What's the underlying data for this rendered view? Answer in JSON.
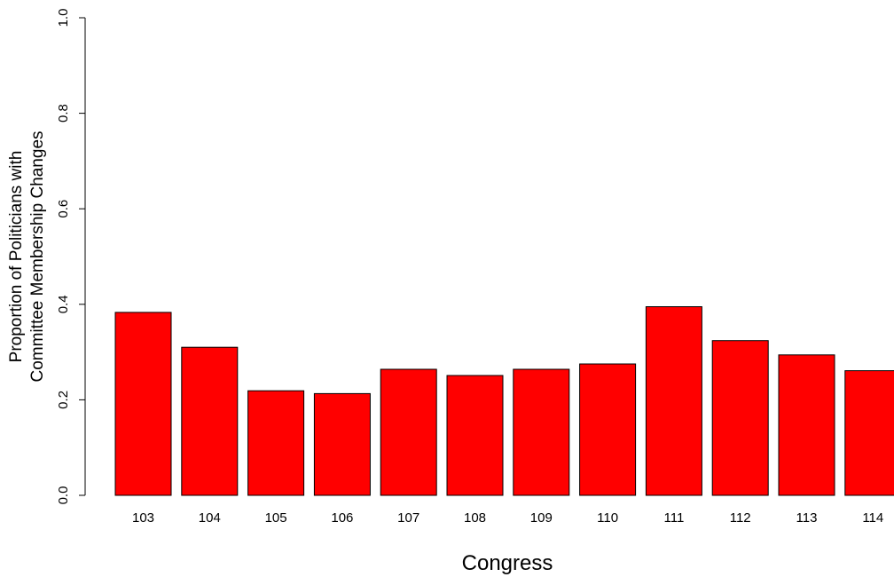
{
  "chart_data": {
    "type": "bar",
    "xlabel": "Congress",
    "ylabel_lines": [
      "Proportion of Politicians with",
      "Committee Membership Changes"
    ],
    "categories": [
      "103",
      "104",
      "105",
      "106",
      "107",
      "108",
      "109",
      "110",
      "111",
      "112",
      "113",
      "114"
    ],
    "values": [
      0.383,
      0.31,
      0.219,
      0.213,
      0.264,
      0.251,
      0.264,
      0.275,
      0.395,
      0.324,
      0.294,
      0.261
    ],
    "ylim": [
      0.0,
      1.0
    ],
    "yticks": [
      "0.0",
      "0.2",
      "0.4",
      "0.6",
      "0.8",
      "1.0"
    ],
    "bar_color": "#ff0000",
    "bar_border_color": "#000000",
    "grid": false,
    "legend": "none"
  }
}
